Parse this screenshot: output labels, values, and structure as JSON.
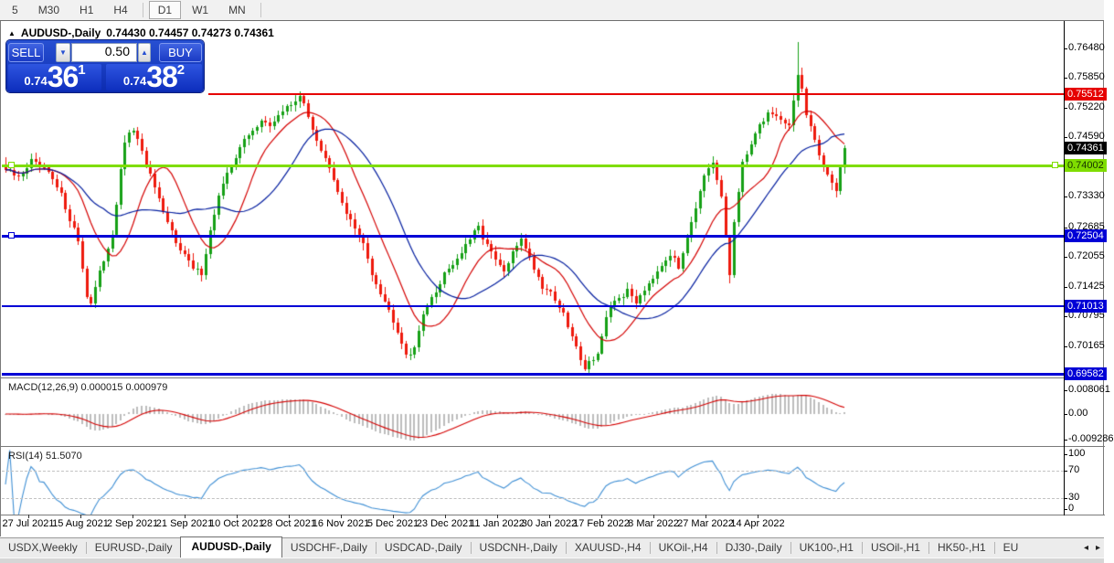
{
  "toolbar": {
    "items": [
      "5",
      "M30",
      "H1",
      "H4",
      "D1",
      "W1",
      "MN"
    ],
    "active": "D1",
    "separators_after": [
      "H4",
      "MN"
    ]
  },
  "chart_header": {
    "collapse_icon": "▲",
    "title": "AUDUSD-,Daily",
    "ohlc_text": "0.74430 0.74457 0.74273 0.74361"
  },
  "trade_panel": {
    "sell_label": "SELL",
    "buy_label": "BUY",
    "lot_size": "0.50",
    "spin_down_icon": "▼",
    "spin_up_icon": "▲",
    "sell_price": {
      "small": "0.74",
      "big": "36",
      "sup": "1"
    },
    "buy_price": {
      "small": "0.74",
      "big": "38",
      "sup": "2"
    }
  },
  "tabs": {
    "items": [
      "USDX,Weekly",
      "EURUSD-,Daily",
      "AUDUSD-,Daily",
      "USDCHF-,Daily",
      "USDCAD-,Daily",
      "USDCNH-,Daily",
      "XAUUSD-,H4",
      "UKOil-,H4",
      "DJ30-,Daily",
      "UK100-,H1",
      "USOil-,H1",
      "HK50-,H1",
      "EU"
    ],
    "active": "AUDUSD-,Daily",
    "scroll_left_icon": "◂",
    "scroll_right_icon": "▸"
  },
  "chart_data": {
    "type": "candlestick",
    "symbol": "AUDUSD-",
    "timeframe": "Daily",
    "ohlc_display": {
      "open": "0.74430",
      "high": "0.74457",
      "low": "0.74273",
      "close": "0.74361"
    },
    "bar_count": 198,
    "price_anchors": [
      [
        0,
        0.739
      ],
      [
        3,
        0.7372
      ],
      [
        6,
        0.7408
      ],
      [
        10,
        0.7382
      ],
      [
        13,
        0.7335
      ],
      [
        17,
        0.724
      ],
      [
        19,
        0.7125
      ],
      [
        20,
        0.7108
      ],
      [
        22,
        0.717
      ],
      [
        25,
        0.7255
      ],
      [
        28,
        0.745
      ],
      [
        30,
        0.7477
      ],
      [
        32,
        0.7425
      ],
      [
        35,
        0.7352
      ],
      [
        37,
        0.7295
      ],
      [
        40,
        0.724
      ],
      [
        44,
        0.718
      ],
      [
        46,
        0.7172
      ],
      [
        48,
        0.726
      ],
      [
        50,
        0.7335
      ],
      [
        53,
        0.74
      ],
      [
        55,
        0.744
      ],
      [
        58,
        0.7472
      ],
      [
        60,
        0.7498
      ],
      [
        62,
        0.7478
      ],
      [
        64,
        0.7508
      ],
      [
        67,
        0.7528
      ],
      [
        69,
        0.755
      ],
      [
        71,
        0.75
      ],
      [
        74,
        0.7432
      ],
      [
        76,
        0.739
      ],
      [
        78,
        0.734
      ],
      [
        81,
        0.7282
      ],
      [
        84,
        0.7232
      ],
      [
        86,
        0.7172
      ],
      [
        89,
        0.7112
      ],
      [
        92,
        0.7052
      ],
      [
        94,
        0.7
      ],
      [
        96,
        0.7008
      ],
      [
        98,
        0.709
      ],
      [
        101,
        0.713
      ],
      [
        103,
        0.7172
      ],
      [
        106,
        0.7202
      ],
      [
        109,
        0.7242
      ],
      [
        111,
        0.7268
      ],
      [
        114,
        0.7212
      ],
      [
        117,
        0.7172
      ],
      [
        119,
        0.7212
      ],
      [
        121,
        0.7248
      ],
      [
        124,
        0.7182
      ],
      [
        126,
        0.7142
      ],
      [
        128,
        0.7132
      ],
      [
        131,
        0.7082
      ],
      [
        134,
        0.7012
      ],
      [
        136,
        0.6972
      ],
      [
        139,
        0.7002
      ],
      [
        141,
        0.7072
      ],
      [
        143,
        0.7112
      ],
      [
        146,
        0.7132
      ],
      [
        148,
        0.7112
      ],
      [
        151,
        0.7152
      ],
      [
        154,
        0.7192
      ],
      [
        156,
        0.7212
      ],
      [
        158,
        0.7182
      ],
      [
        160,
        0.7252
      ],
      [
        162,
        0.7312
      ],
      [
        164,
        0.7372
      ],
      [
        166,
        0.7402
      ],
      [
        168,
        0.733
      ],
      [
        170,
        0.7168
      ],
      [
        171,
        0.728
      ],
      [
        173,
        0.74
      ],
      [
        175,
        0.745
      ],
      [
        177,
        0.7482
      ],
      [
        179,
        0.7512
      ],
      [
        182,
        0.75
      ],
      [
        184,
        0.7482
      ],
      [
        185,
        0.754
      ],
      [
        186,
        0.7592
      ],
      [
        187,
        0.756
      ],
      [
        188,
        0.7502
      ],
      [
        190,
        0.7452
      ],
      [
        191,
        0.7422
      ],
      [
        193,
        0.7382
      ],
      [
        195,
        0.7348
      ],
      [
        196,
        0.7398
      ],
      [
        197,
        0.7436
      ]
    ],
    "wick_spikes": [
      {
        "bar": 186,
        "high": 0.7661
      },
      {
        "bar": 20,
        "low": 0.71
      },
      {
        "bar": 94,
        "low": 0.699
      },
      {
        "bar": 136,
        "low": 0.6965
      },
      {
        "bar": 46,
        "low": 0.7152
      },
      {
        "bar": 170,
        "low": 0.715
      }
    ],
    "levels": [
      {
        "name": "resistance-red",
        "price": 0.75512,
        "color": "#e60000",
        "thickness": 2,
        "left": 227,
        "handles": []
      },
      {
        "name": "support-green",
        "price": 0.74002,
        "color": "#7fdd00",
        "thickness": 3,
        "left": 1,
        "handles": [
          8,
          1150
        ]
      },
      {
        "name": "support-blue-1",
        "price": 0.72504,
        "color": "#0000d6",
        "thickness": 3,
        "left": 1,
        "handles": [
          8
        ]
      },
      {
        "name": "support-blue-2",
        "price": 0.71013,
        "color": "#0000d6",
        "thickness": 2,
        "left": 1,
        "handles": []
      },
      {
        "name": "support-blue-3",
        "price": 0.69582,
        "color": "#0000d6",
        "thickness": 3,
        "left": 1,
        "handles": []
      }
    ],
    "y_ticks": [
      "0.76480",
      "0.75850",
      "0.75220",
      "0.74590",
      "0.73330",
      "0.72685",
      "0.72055",
      "0.71425",
      "0.70795",
      "0.70165"
    ],
    "y_badges": [
      {
        "value": "0.75512",
        "bg": "#e60000",
        "fg": "#ffffff"
      },
      {
        "value": "0.74361",
        "bg": "#000000",
        "fg": "#ffffff"
      },
      {
        "value": "0.74002",
        "bg": "#7fdd00",
        "fg": "#173300"
      },
      {
        "value": "0.72504",
        "bg": "#0000d6",
        "fg": "#ffffff"
      },
      {
        "value": "0.71013",
        "bg": "#0000d6",
        "fg": "#ffffff"
      },
      {
        "value": "0.69582",
        "bg": "#0000d6",
        "fg": "#ffffff"
      }
    ],
    "current_price": "0.74361",
    "x_ticks": [
      "27 Jul 2021",
      "15 Aug 2021",
      "2 Sep 2021",
      "21 Sep 2021",
      "10 Oct 2021",
      "28 Oct 2021",
      "16 Nov 2021",
      "5 Dec 2021",
      "23 Dec 2021",
      "11 Jan 2022",
      "30 Jan 2022",
      "17 Feb 2022",
      "8 Mar 2022",
      "27 Mar 2022",
      "14 Apr 2022"
    ],
    "macd": {
      "params": "MACD(12,26,9)",
      "value_main": "0.000015",
      "value_signal": "0.000979",
      "axis_ticks": [
        {
          "label": "0.008061",
          "y": 404
        },
        {
          "label": "0.00",
          "y": 430
        },
        {
          "label": "-0.009286",
          "y": 458
        }
      ]
    },
    "rsi": {
      "params": "RSI(14)",
      "value": "51.5070",
      "axis_ticks": [
        {
          "label": "100",
          "y": 474
        },
        {
          "label": "70",
          "y": 492
        },
        {
          "label": "30",
          "y": 522
        },
        {
          "label": "0",
          "y": 534
        }
      ],
      "dashed_levels": [
        70,
        30
      ]
    },
    "colors": {
      "up": "#16a016",
      "down": "#ee1a0d",
      "ma_fast": "#d40000",
      "ma_slow": "#001c9e",
      "macd_hist": "#bdbdbd",
      "macd_signal": "#d40000",
      "rsi_line": "#3f8fd4"
    }
  }
}
